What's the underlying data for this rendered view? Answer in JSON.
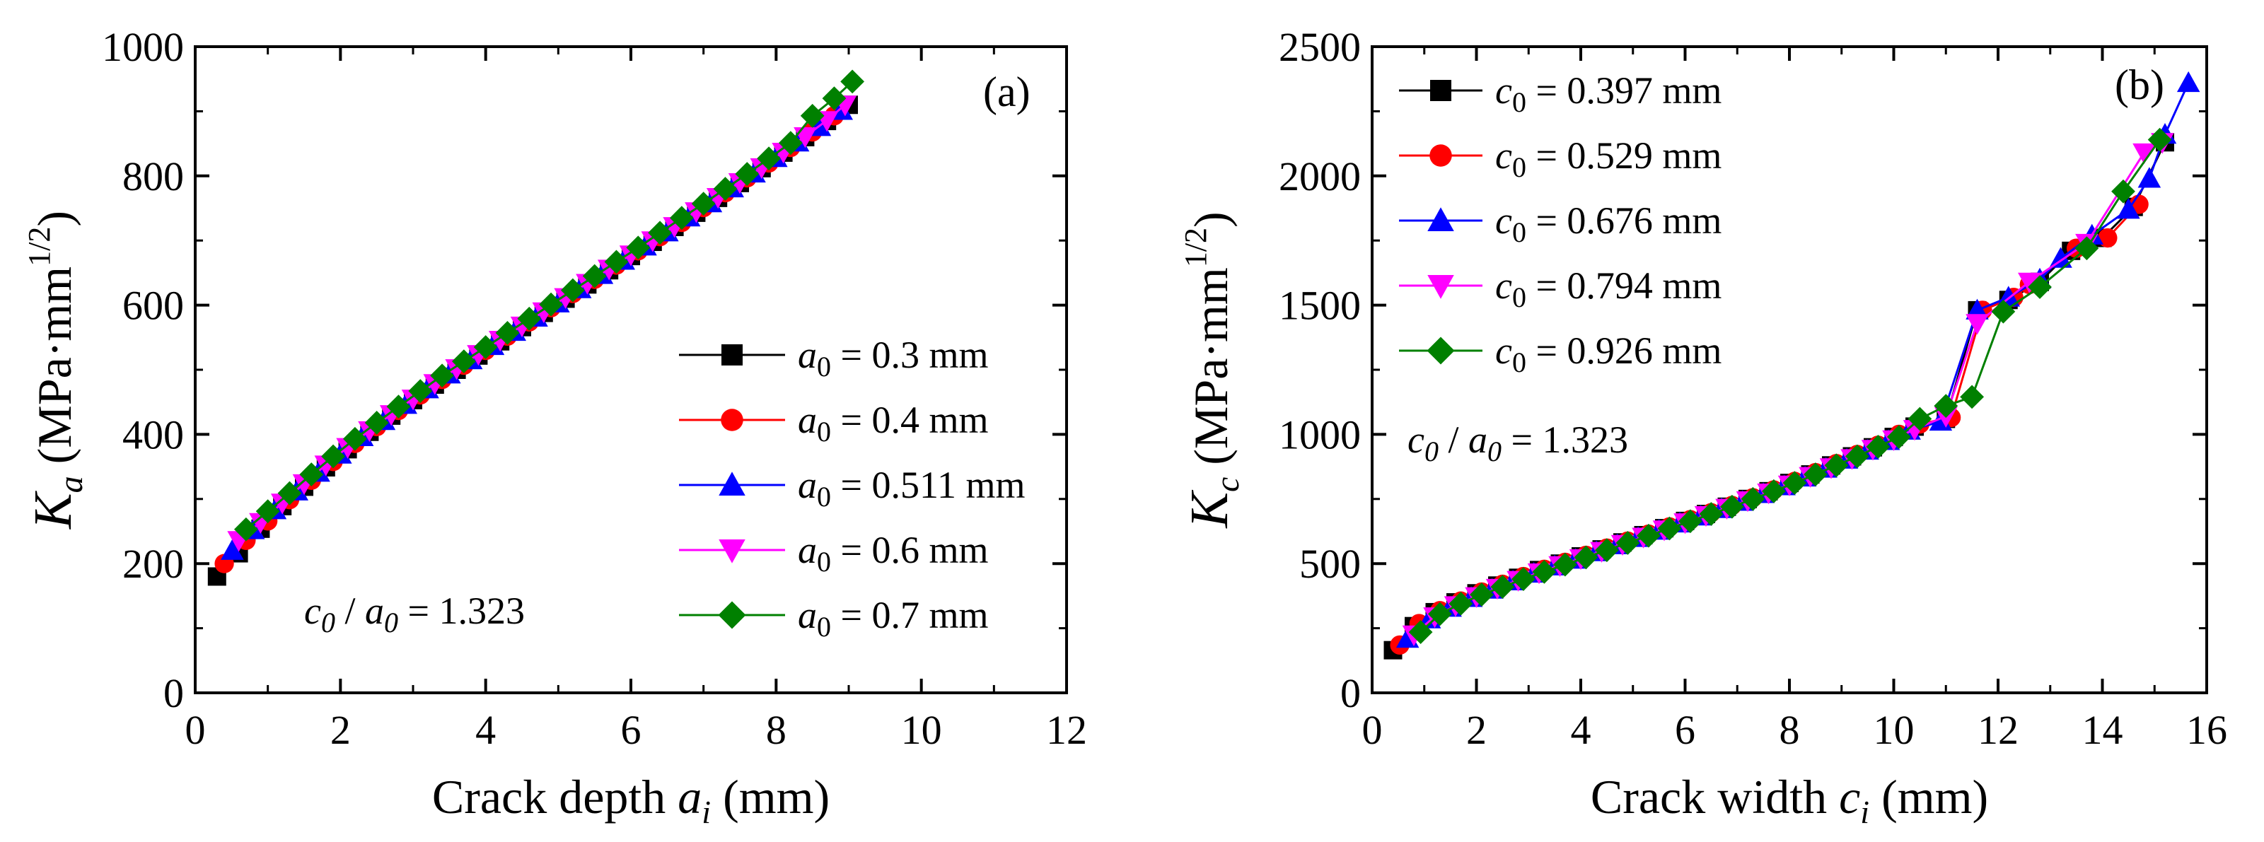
{
  "chart_data": [
    {
      "type": "line",
      "panel_label": "(a)",
      "xlabel": "Crack depth a_i (mm)",
      "xlabel_parts": {
        "prefix": "Crack depth ",
        "var": "a",
        "sub": "i",
        "suffix": " (mm)"
      },
      "ylabel": "K_a (MPa·mm^1/2)",
      "ylabel_parts": {
        "var": "K",
        "sub": "a",
        "unit": "(MPa·mm",
        "sup": "1/2",
        "close": ")"
      },
      "xlim": [
        0,
        12
      ],
      "ylim": [
        0,
        1000
      ],
      "xticks": [
        0,
        2,
        4,
        6,
        8,
        10,
        12
      ],
      "yticks": [
        0,
        200,
        400,
        600,
        800,
        1000
      ],
      "xtick_labels": [
        "0",
        "2",
        "4",
        "6",
        "8",
        "10",
        "12"
      ],
      "ytick_labels": [
        "0",
        "200",
        "400",
        "600",
        "800",
        "1000"
      ],
      "legend_position": "center-right",
      "annotation": {
        "text": "c0 / a0 = 1.323",
        "var1": "c",
        "sub1": "0",
        "slash": " / ",
        "var2": "a",
        "sub2": "0",
        "rest": " =  1.323"
      },
      "series": [
        {
          "name": "a0 = 0.3 mm",
          "legend_var": "a",
          "legend_sub": "0",
          "legend_rest": " = 0.3 mm",
          "color": "#000000",
          "marker": "square",
          "x": [
            0.3,
            0.6,
            0.9,
            1.2,
            1.5,
            1.8,
            2.1,
            2.4,
            2.7,
            3.0,
            3.3,
            3.6,
            3.9,
            4.2,
            4.5,
            4.8,
            5.1,
            5.4,
            5.7,
            6.0,
            6.3,
            6.6,
            6.9,
            7.2,
            7.5,
            7.8,
            8.1,
            8.4,
            8.7,
            9.0
          ],
          "y": [
            180,
            216,
            254,
            289,
            319,
            349,
            377,
            404,
            429,
            453,
            477,
            500,
            522,
            544,
            566,
            588,
            610,
            632,
            654,
            676,
            698,
            721,
            743,
            766,
            789,
            812,
            836,
            860,
            885,
            910
          ]
        },
        {
          "name": "a0 = 0.4 mm",
          "legend_var": "a",
          "legend_sub": "0",
          "legend_rest": " = 0.4 mm",
          "color": "#ff0000",
          "marker": "circle",
          "x": [
            0.4,
            0.7,
            1.0,
            1.3,
            1.6,
            1.9,
            2.2,
            2.5,
            2.8,
            3.1,
            3.4,
            3.7,
            4.0,
            4.3,
            4.6,
            4.9,
            5.2,
            5.5,
            5.8,
            6.1,
            6.4,
            6.7,
            7.0,
            7.3,
            7.6,
            7.9,
            8.2,
            8.5,
            8.8
          ],
          "y": [
            200,
            236,
            266,
            299,
            329,
            358,
            386,
            412,
            437,
            461,
            485,
            507,
            530,
            552,
            574,
            596,
            618,
            640,
            662,
            684,
            706,
            728,
            751,
            774,
            797,
            820,
            844,
            868,
            893
          ]
        },
        {
          "name": "a0 = 0.511 mm",
          "legend_var": "a",
          "legend_sub": "0",
          "legend_rest": " = 0.511 mm",
          "color": "#0000ff",
          "marker": "triangle-up",
          "x": [
            0.51,
            0.8,
            1.1,
            1.4,
            1.7,
            2.0,
            2.3,
            2.6,
            2.9,
            3.2,
            3.5,
            3.8,
            4.1,
            4.4,
            4.7,
            5.0,
            5.3,
            5.6,
            5.9,
            6.2,
            6.5,
            6.8,
            7.1,
            7.4,
            7.7,
            8.0,
            8.3,
            8.6,
            8.9
          ],
          "y": [
            220,
            252,
            283,
            312,
            341,
            369,
            396,
            421,
            446,
            470,
            493,
            515,
            537,
            559,
            581,
            603,
            625,
            647,
            669,
            691,
            713,
            736,
            758,
            781,
            804,
            828,
            852,
            876,
            901
          ]
        },
        {
          "name": "a0 = 0.6 mm",
          "legend_var": "a",
          "legend_sub": "0",
          "legend_rest": " = 0.6 mm",
          "color": "#ff00ff",
          "marker": "triangle-down",
          "x": [
            0.6,
            0.9,
            1.2,
            1.5,
            1.8,
            2.1,
            2.4,
            2.7,
            3.0,
            3.3,
            3.6,
            3.9,
            4.2,
            4.5,
            4.8,
            5.1,
            5.4,
            5.7,
            6.0,
            6.3,
            6.6,
            6.9,
            7.2,
            7.5,
            7.8,
            8.1,
            8.4,
            8.7,
            8.95
          ],
          "y": [
            236,
            264,
            294,
            324,
            353,
            380,
            406,
            431,
            455,
            479,
            502,
            524,
            546,
            568,
            590,
            612,
            634,
            656,
            678,
            700,
            722,
            745,
            767,
            790,
            813,
            837,
            861,
            886,
            910
          ]
        },
        {
          "name": "a0 = 0.7 mm",
          "legend_var": "a",
          "legend_sub": "0",
          "legend_rest": " = 0.7 mm",
          "color": "#008000",
          "marker": "diamond",
          "x": [
            0.7,
            1.0,
            1.3,
            1.6,
            1.9,
            2.2,
            2.5,
            2.8,
            3.1,
            3.4,
            3.7,
            4.0,
            4.3,
            4.6,
            4.9,
            5.2,
            5.5,
            5.8,
            6.1,
            6.4,
            6.7,
            7.0,
            7.3,
            7.6,
            7.9,
            8.2,
            8.5,
            8.8,
            9.05
          ],
          "y": [
            253,
            281,
            309,
            338,
            366,
            393,
            418,
            443,
            467,
            491,
            513,
            535,
            557,
            579,
            601,
            623,
            645,
            667,
            689,
            712,
            735,
            757,
            780,
            803,
            827,
            851,
            893,
            920,
            946
          ]
        }
      ]
    },
    {
      "type": "line",
      "panel_label": "(b)",
      "xlabel": "Crack width c_i (mm)",
      "xlabel_parts": {
        "prefix": "Crack width ",
        "var": "c",
        "sub": "i",
        "suffix": " (mm)"
      },
      "ylabel": "K_c (MPa·mm^1/2)",
      "ylabel_parts": {
        "var": "K",
        "sub": "c",
        "unit": "(MPa·mm",
        "sup": "1/2",
        "close": ")"
      },
      "xlim": [
        0,
        16
      ],
      "ylim": [
        0,
        2500
      ],
      "xticks": [
        0,
        2,
        4,
        6,
        8,
        10,
        12,
        14,
        16
      ],
      "yticks": [
        0,
        500,
        1000,
        1500,
        2000,
        2500
      ],
      "xtick_labels": [
        "0",
        "2",
        "4",
        "6",
        "8",
        "10",
        "12",
        "14",
        "16"
      ],
      "ytick_labels": [
        "0",
        "500",
        "1000",
        "1500",
        "2000",
        "2500"
      ],
      "legend_position": "top-left",
      "annotation": {
        "text": "c0 / a0 = 1.323",
        "var1": "c",
        "sub1": "0",
        "slash": " / ",
        "var2": "a",
        "sub2": "0",
        "rest": " =  1.323"
      },
      "series": [
        {
          "name": "c0 = 0.397 mm",
          "legend_var": "c",
          "legend_sub": "0",
          "legend_rest": "  =  0.397 mm",
          "color": "#000000",
          "marker": "square",
          "x": [
            0.4,
            0.8,
            1.2,
            1.6,
            2.0,
            2.4,
            2.8,
            3.2,
            3.6,
            4.0,
            4.4,
            4.8,
            5.2,
            5.6,
            6.0,
            6.4,
            6.8,
            7.2,
            7.6,
            8.0,
            8.4,
            8.8,
            9.2,
            9.6,
            10.0,
            10.4,
            11.0,
            11.6,
            12.2,
            12.8,
            13.4,
            14.0,
            14.6,
            15.2
          ],
          "y": [
            165,
            258,
            312,
            350,
            385,
            415,
            445,
            475,
            500,
            528,
            555,
            582,
            610,
            637,
            665,
            692,
            720,
            750,
            780,
            812,
            845,
            880,
            915,
            950,
            990,
            1030,
            1060,
            1480,
            1520,
            1590,
            1710,
            1760,
            1880,
            2130
          ]
        },
        {
          "name": "c0 = 0.529 mm",
          "legend_var": "c",
          "legend_sub": "0",
          "legend_rest": "  =  0.529 mm",
          "color": "#ff0000",
          "marker": "circle",
          "x": [
            0.53,
            0.9,
            1.3,
            1.7,
            2.1,
            2.5,
            2.9,
            3.3,
            3.7,
            4.1,
            4.5,
            4.9,
            5.3,
            5.7,
            6.1,
            6.5,
            6.9,
            7.3,
            7.7,
            8.1,
            8.5,
            8.9,
            9.3,
            9.7,
            10.1,
            10.5,
            11.1,
            11.7,
            12.3,
            12.6,
            13.5,
            14.1,
            14.7
          ],
          "y": [
            185,
            268,
            318,
            355,
            390,
            420,
            450,
            478,
            505,
            532,
            560,
            587,
            614,
            642,
            670,
            697,
            725,
            755,
            785,
            818,
            852,
            887,
            922,
            958,
            1000,
            1040,
            1065,
            1480,
            1530,
            1580,
            1720,
            1760,
            1890
          ]
        },
        {
          "name": "c0 = 0.676 mm",
          "legend_var": "c",
          "legend_sub": "0",
          "legend_rest": "  =  0.676 mm",
          "color": "#0000ff",
          "marker": "triangle-up",
          "x": [
            0.68,
            1.1,
            1.5,
            1.9,
            2.3,
            2.7,
            3.1,
            3.5,
            3.9,
            4.3,
            4.7,
            5.1,
            5.5,
            5.9,
            6.3,
            6.7,
            7.1,
            7.5,
            7.9,
            8.3,
            8.7,
            9.1,
            9.5,
            9.9,
            10.3,
            10.9,
            11.6,
            12.2,
            12.8,
            13.2,
            13.8,
            14.5,
            14.9,
            15.2,
            15.65
          ],
          "y": [
            210,
            285,
            330,
            368,
            400,
            432,
            462,
            490,
            516,
            545,
            572,
            600,
            628,
            656,
            683,
            712,
            740,
            770,
            800,
            834,
            868,
            903,
            938,
            975,
            1015,
            1050,
            1480,
            1530,
            1600,
            1680,
            1770,
            1870,
            1990,
            2160,
            2360
          ]
        },
        {
          "name": "c0 = 0.794 mm",
          "legend_var": "c",
          "legend_sub": "0",
          "legend_rest": "  =  0.794 mm",
          "color": "#ff00ff",
          "marker": "triangle-down",
          "x": [
            0.8,
            1.2,
            1.6,
            2.0,
            2.4,
            2.8,
            3.2,
            3.6,
            4.0,
            4.4,
            4.8,
            5.2,
            5.6,
            6.0,
            6.4,
            6.8,
            7.2,
            7.6,
            8.0,
            8.4,
            8.8,
            9.2,
            9.6,
            10.0,
            10.4,
            11.0,
            11.6,
            12.6,
            13.7,
            14.8,
            15.15
          ],
          "y": [
            225,
            295,
            338,
            373,
            405,
            436,
            465,
            493,
            520,
            548,
            575,
            603,
            631,
            659,
            687,
            715,
            744,
            774,
            805,
            838,
            872,
            907,
            943,
            980,
            1020,
            1070,
            1430,
            1590,
            1740,
            2090,
            2130
          ]
        },
        {
          "name": "c0 = 0.926 mm",
          "legend_var": "c",
          "legend_sub": "0",
          "legend_rest": "  =  0.926 mm",
          "color": "#008000",
          "marker": "diamond",
          "x": [
            0.93,
            1.3,
            1.7,
            2.1,
            2.5,
            2.9,
            3.3,
            3.7,
            4.1,
            4.5,
            4.9,
            5.3,
            5.7,
            6.1,
            6.5,
            6.9,
            7.3,
            7.7,
            8.1,
            8.5,
            8.9,
            9.3,
            9.7,
            10.1,
            10.5,
            11.0,
            11.5,
            12.1,
            12.8,
            13.7,
            14.4,
            15.1
          ],
          "y": [
            235,
            305,
            345,
            380,
            410,
            440,
            468,
            496,
            524,
            552,
            580,
            608,
            636,
            664,
            692,
            720,
            750,
            780,
            812,
            845,
            880,
            915,
            952,
            990,
            1060,
            1110,
            1145,
            1475,
            1570,
            1720,
            1940,
            2140
          ]
        }
      ]
    }
  ]
}
